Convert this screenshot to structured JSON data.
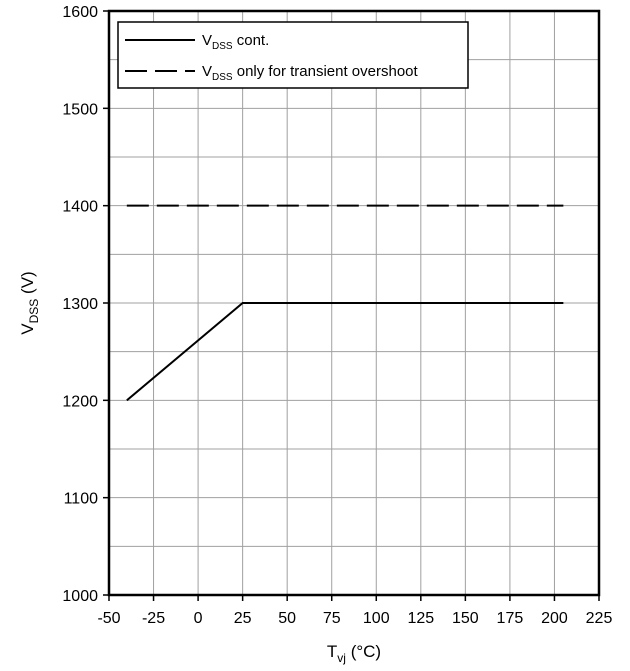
{
  "chart_data": {
    "type": "line",
    "xlabel": {
      "main": "T",
      "sub": "vj",
      "unit": " (°C)"
    },
    "ylabel": {
      "main": "V",
      "sub": "DSS",
      "unit": " (V)"
    },
    "xlim": [
      -50,
      225
    ],
    "ylim": [
      1000,
      1600
    ],
    "xticks": [
      -50,
      -25,
      0,
      25,
      50,
      75,
      100,
      125,
      150,
      175,
      200,
      225
    ],
    "yticks": [
      1000,
      1100,
      1200,
      1300,
      1400,
      1500,
      1600
    ],
    "xtick_labels": [
      "-50",
      "-25",
      "0",
      "25",
      "50",
      "75",
      "100",
      "125",
      "150",
      "175",
      "200",
      "225"
    ],
    "ytick_labels": [
      "1000",
      "1100",
      "1200",
      "1300",
      "1400",
      "1500",
      "1600"
    ],
    "grid": true,
    "legend_position": "top-left",
    "series": [
      {
        "name": "V_DSS cont.",
        "legend": {
          "main": "V",
          "sub": "DSS",
          "rest": " cont."
        },
        "style": "solid",
        "color": "#000000",
        "x": [
          -40,
          25,
          205
        ],
        "y": [
          1200,
          1300,
          1300
        ]
      },
      {
        "name": "V_DSS only for transient overshoot",
        "legend": {
          "main": "V",
          "sub": "DSS",
          "rest": " only for transient overshoot"
        },
        "style": "dashed",
        "color": "#000000",
        "x": [
          -40,
          205
        ],
        "y": [
          1400,
          1400
        ]
      }
    ]
  }
}
